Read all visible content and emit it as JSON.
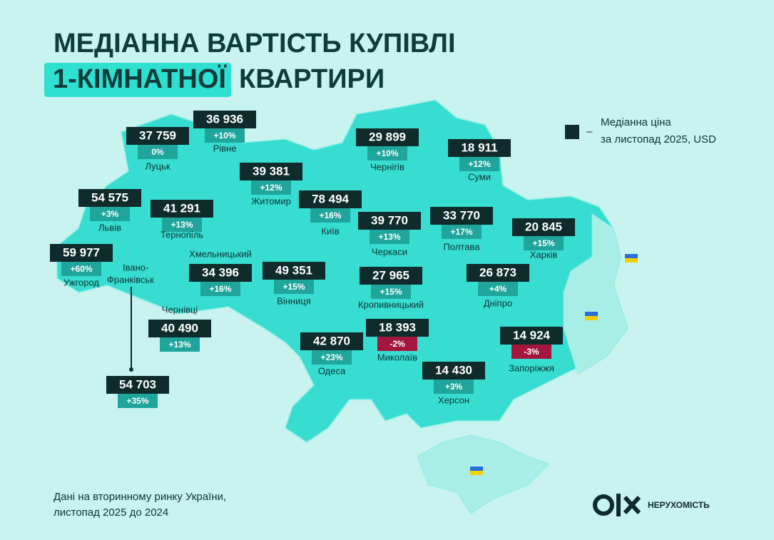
{
  "header": {
    "title_line1": "МЕДІАННА ВАРТІСТЬ КУПІВЛІ",
    "title_highlight": "1-КІМНАТНОЇ",
    "title_rest": "КВАРТИРИ"
  },
  "legend": {
    "dash": "–",
    "line1": "Медіанна ціна",
    "line2": "за листопад 2025, USD"
  },
  "cities": [
    {
      "name": "Луцьк",
      "price": "37 759",
      "change": "0%"
    },
    {
      "name": "Рівне",
      "price": "36 936",
      "change": "+10%"
    },
    {
      "name": "Львів",
      "price": "54 575",
      "change": "+3%"
    },
    {
      "name": "Тернопіль",
      "price": "41 291",
      "change": "+13%"
    },
    {
      "name": "Ужгород",
      "price": "59 977",
      "change": "+60%"
    },
    {
      "name": "Хмельницький",
      "price": "34 396",
      "change": "+16%"
    },
    {
      "name": "Чернівці",
      "price": "40 490",
      "change": "+13%"
    },
    {
      "name": "Житомир",
      "price": "39 381",
      "change": "+12%"
    },
    {
      "name": "Київ",
      "price": "78 494",
      "change": "+16%"
    },
    {
      "name": "Вінниця",
      "price": "49 351",
      "change": "+15%"
    },
    {
      "name": "Черкаси",
      "price": "39 770",
      "change": "+13%"
    },
    {
      "name": "Кропивницький",
      "price": "27 965",
      "change": "+15%"
    },
    {
      "name": "Одеса",
      "price": "42 870",
      "change": "+23%"
    },
    {
      "name": "Миколаїв",
      "price": "18 393",
      "change": "-2%"
    },
    {
      "name": "Херсон",
      "price": "14 430",
      "change": "+3%"
    },
    {
      "name": "Чернігів",
      "price": "29 899",
      "change": "+10%"
    },
    {
      "name": "Суми",
      "price": "18 911",
      "change": "+12%"
    },
    {
      "name": "Полтава",
      "price": "33 770",
      "change": "+17%"
    },
    {
      "name": "Харків",
      "price": "20 845",
      "change": "+15%"
    },
    {
      "name": "Дніпро",
      "price": "26 873",
      "change": "+4%"
    },
    {
      "name": "Запоріжжя",
      "price": "14 924",
      "change": "-3%"
    }
  ],
  "ivano": {
    "name_line1": "Івано-",
    "name_line2": "Франківськ",
    "price": "54 703",
    "change": "+35%"
  },
  "footer": {
    "line1": "Дані на вторинному ринку України,",
    "line2": "листопад 2025 до 2024",
    "brand": "НЕРУХОМІСТЬ"
  }
}
